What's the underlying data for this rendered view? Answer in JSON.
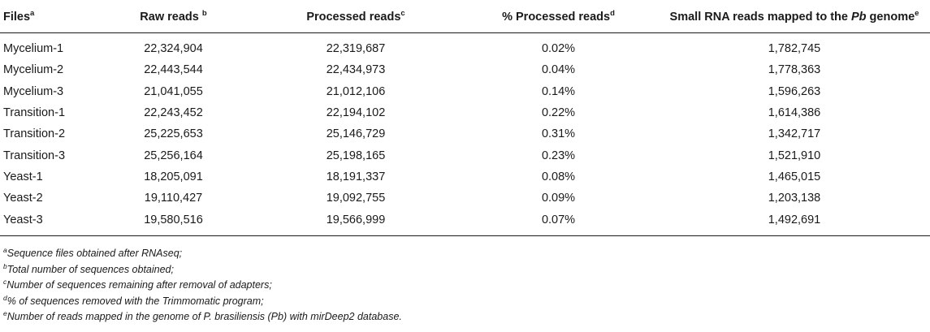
{
  "table": {
    "headers": [
      {
        "text": "Files",
        "sup": "a"
      },
      {
        "text": "Raw reads ",
        "sup": "b"
      },
      {
        "text": "Processed reads",
        "sup": "c"
      },
      {
        "text": "% Processed reads",
        "sup": "d"
      },
      {
        "pre": "Small RNA reads mapped to the ",
        "em": "Pb",
        "post": " genome",
        "sup": "e"
      }
    ],
    "rows": [
      [
        "Mycelium-1",
        "22,324,904",
        "22,319,687",
        "0.02%",
        "1,782,745"
      ],
      [
        "Mycelium-2",
        "22,443,544",
        "22,434,973",
        "0.04%",
        "1,778,363"
      ],
      [
        "Mycelium-3",
        "21,041,055",
        "21,012,106",
        "0.14%",
        "1,596,263"
      ],
      [
        "Transition-1",
        "22,243,452",
        "22,194,102",
        "0.22%",
        "1,614,386"
      ],
      [
        "Transition-2",
        "25,225,653",
        "25,146,729",
        "0.31%",
        "1,342,717"
      ],
      [
        "Transition-3",
        "25,256,164",
        "25,198,165",
        "0.23%",
        "1,521,910"
      ],
      [
        "Yeast-1",
        "18,205,091",
        "18,191,337",
        "0.08%",
        "1,465,015"
      ],
      [
        "Yeast-2",
        "19,110,427",
        "19,092,755",
        "0.09%",
        "1,203,138"
      ],
      [
        "Yeast-3",
        "19,580,516",
        "19,566,999",
        "0.07%",
        "1,492,691"
      ]
    ]
  },
  "footnotes": [
    {
      "sup": "a",
      "text": "Sequence files obtained after RNAseq;"
    },
    {
      "sup": "b",
      "text": "Total number of sequences obtained;"
    },
    {
      "sup": "c",
      "text": "Number of sequences remaining after removal of adapters;"
    },
    {
      "sup": "d",
      "text": "% of sequences removed with the Trimmomatic program;"
    },
    {
      "sup": "e",
      "text": "Number of reads mapped in the genome of P. brasiliensis (Pb) with mirDeep2 database."
    }
  ]
}
